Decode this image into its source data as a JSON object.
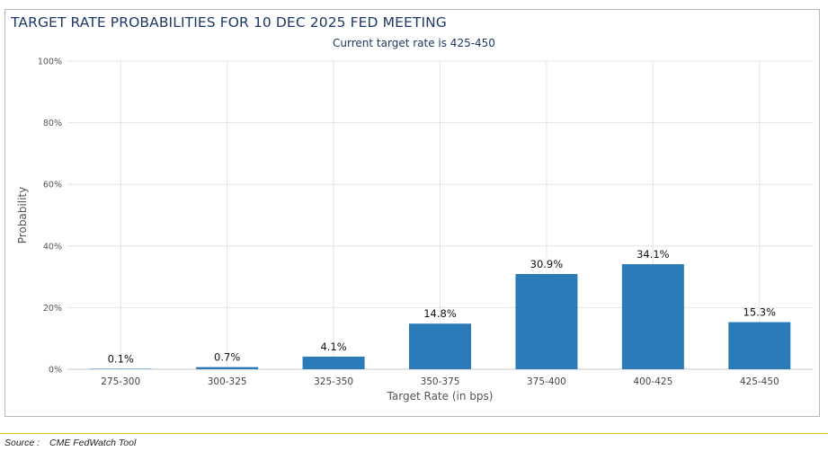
{
  "chart_data": {
    "type": "bar",
    "title": "TARGET RATE PROBABILITIES FOR 10 DEC 2025 FED MEETING",
    "subtitle": "Current target rate is 425-450",
    "categories": [
      "275-300",
      "300-325",
      "325-350",
      "350-375",
      "375-400",
      "400-425",
      "425-450"
    ],
    "values": [
      0.1,
      0.7,
      4.1,
      14.8,
      30.9,
      34.1,
      15.3
    ],
    "data_labels": [
      "0.1%",
      "0.7%",
      "4.1%",
      "14.8%",
      "30.9%",
      "34.1%",
      "15.3%"
    ],
    "xlabel": "Target Rate (in bps)",
    "ylabel": "Probability",
    "ylim": [
      0,
      100
    ],
    "yticks": [
      0,
      20,
      40,
      60,
      80,
      100
    ],
    "ytick_labels": [
      "0%",
      "20%",
      "40%",
      "60%",
      "80%",
      "100%"
    ],
    "grid": true,
    "bar_color": "#2b7bb9"
  },
  "footer": {
    "source_label": "Source :",
    "source_value": "CME FedWatch Tool"
  }
}
